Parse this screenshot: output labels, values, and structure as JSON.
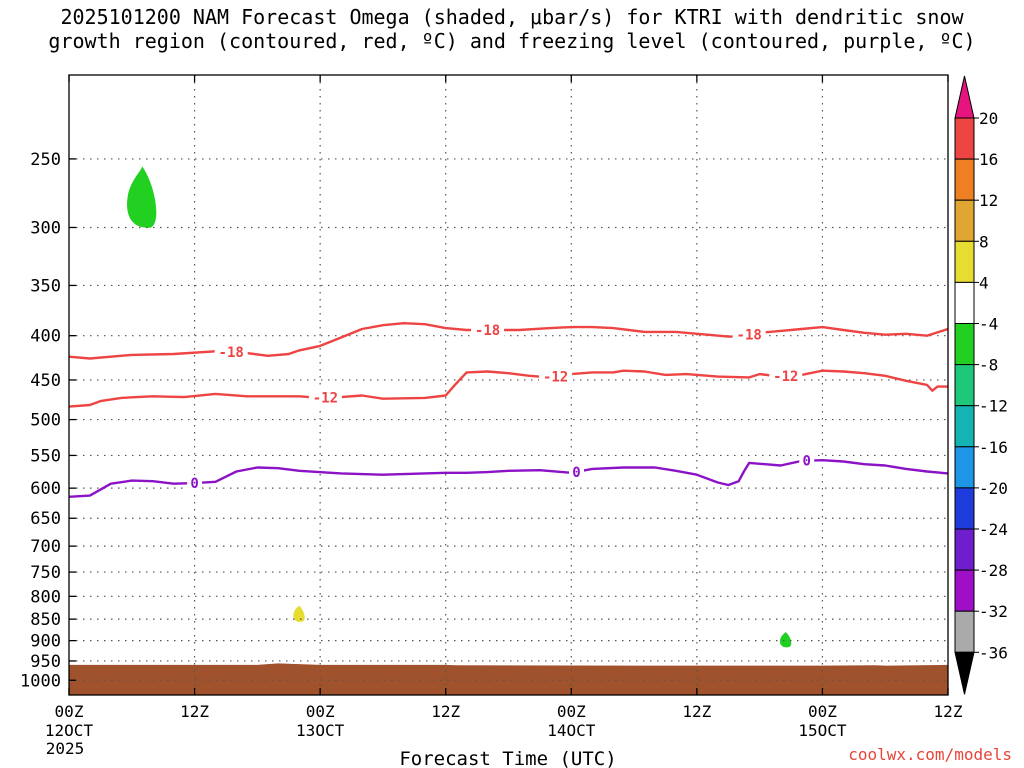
{
  "chart_data": {
    "type": "heatmap",
    "title_line1": "2025101200 NAM Forecast Omega (shaded, μbar/s) for KTRI with dendritic snow",
    "title_line2": "growth region (contoured, red, ºC) and freezing level (contoured, purple, ºC)",
    "xlabel": "Forecast Time (UTC)",
    "ylabel": "",
    "x_range_hours": [
      0,
      84
    ],
    "x_ticks": [
      {
        "hour": 0,
        "line1": "00Z",
        "line2": "12OCT",
        "line3": "2025"
      },
      {
        "hour": 12,
        "line1": "12Z",
        "line2": "",
        "line3": ""
      },
      {
        "hour": 24,
        "line1": "00Z",
        "line2": "13OCT",
        "line3": ""
      },
      {
        "hour": 36,
        "line1": "12Z",
        "line2": "",
        "line3": ""
      },
      {
        "hour": 48,
        "line1": "00Z",
        "line2": "14OCT",
        "line3": ""
      },
      {
        "hour": 60,
        "line1": "12Z",
        "line2": "",
        "line3": ""
      },
      {
        "hour": 72,
        "line1": "00Z",
        "line2": "15OCT",
        "line3": ""
      },
      {
        "hour": 84,
        "line1": "12Z",
        "line2": "",
        "line3": ""
      }
    ],
    "y_axis": "pressure (hPa), log scale, inverted",
    "y_range": [
      1040,
      200
    ],
    "y_ticks": [
      250,
      300,
      350,
      400,
      450,
      500,
      550,
      600,
      650,
      700,
      750,
      800,
      850,
      900,
      950,
      1000
    ],
    "grid": true,
    "series": [
      {
        "name": "-18",
        "color": "#ee4444",
        "label_positions_hours": [
          15.5,
          40,
          65
        ],
        "points": [
          [
            0,
            423
          ],
          [
            2,
            425
          ],
          [
            6,
            421
          ],
          [
            10,
            420
          ],
          [
            14,
            417
          ],
          [
            17,
            419
          ],
          [
            19,
            422
          ],
          [
            21,
            420
          ],
          [
            22,
            416
          ],
          [
            24,
            411
          ],
          [
            26,
            402
          ],
          [
            28,
            393
          ],
          [
            30,
            389
          ],
          [
            32,
            387
          ],
          [
            34,
            388
          ],
          [
            36,
            392
          ],
          [
            38,
            394
          ],
          [
            40,
            394
          ],
          [
            43,
            394
          ],
          [
            46,
            392
          ],
          [
            48,
            391
          ],
          [
            50,
            391
          ],
          [
            52,
            392
          ],
          [
            55,
            396
          ],
          [
            58,
            396
          ],
          [
            61,
            399
          ],
          [
            63,
            401
          ],
          [
            64,
            401
          ],
          [
            66,
            397
          ],
          [
            68,
            395
          ],
          [
            70,
            393
          ],
          [
            72,
            391
          ],
          [
            74,
            394
          ],
          [
            76,
            397
          ],
          [
            78,
            399
          ],
          [
            80,
            398
          ],
          [
            82,
            400
          ],
          [
            84,
            393
          ]
        ]
      },
      {
        "name": "-12",
        "color": "#ee4444",
        "label_positions_hours": [
          24.5,
          46.5,
          68.5
        ],
        "points": [
          [
            0,
            483
          ],
          [
            2,
            481
          ],
          [
            3,
            476
          ],
          [
            5,
            472
          ],
          [
            8,
            470
          ],
          [
            11,
            471
          ],
          [
            14,
            467
          ],
          [
            17,
            470
          ],
          [
            20,
            470
          ],
          [
            22,
            470
          ],
          [
            24,
            472
          ],
          [
            26,
            471
          ],
          [
            28,
            469
          ],
          [
            30,
            473
          ],
          [
            34,
            472
          ],
          [
            36,
            469
          ],
          [
            36.8,
            457
          ],
          [
            38,
            441
          ],
          [
            40,
            440
          ],
          [
            42,
            442
          ],
          [
            44,
            445
          ],
          [
            46,
            447
          ],
          [
            48,
            443
          ],
          [
            50,
            441
          ],
          [
            52,
            441
          ],
          [
            53,
            439
          ],
          [
            55,
            440
          ],
          [
            57,
            444
          ],
          [
            59,
            443
          ],
          [
            62,
            446
          ],
          [
            65,
            447
          ],
          [
            66,
            443
          ],
          [
            68,
            446
          ],
          [
            70,
            444
          ],
          [
            72,
            439
          ],
          [
            74,
            440
          ],
          [
            76,
            442
          ],
          [
            78,
            445
          ],
          [
            80,
            451
          ],
          [
            82,
            456
          ],
          [
            82.5,
            463
          ],
          [
            83,
            458
          ],
          [
            84,
            458
          ]
        ]
      },
      {
        "name": "0",
        "color": "#8c12c6",
        "label_positions_hours": [
          12,
          48.5,
          70.5
        ],
        "points": [
          [
            0,
            614
          ],
          [
            2,
            612
          ],
          [
            4,
            593
          ],
          [
            6,
            588
          ],
          [
            8,
            589
          ],
          [
            10,
            593
          ],
          [
            12,
            592
          ],
          [
            14,
            590
          ],
          [
            16,
            574
          ],
          [
            18,
            568
          ],
          [
            20,
            569
          ],
          [
            22,
            573
          ],
          [
            26,
            577
          ],
          [
            30,
            579
          ],
          [
            32,
            578
          ],
          [
            36,
            576
          ],
          [
            38,
            576
          ],
          [
            40,
            575
          ],
          [
            42,
            573
          ],
          [
            45,
            572
          ],
          [
            48,
            576
          ],
          [
            50,
            570
          ],
          [
            53,
            568
          ],
          [
            56,
            568
          ],
          [
            58,
            573
          ],
          [
            60,
            579
          ],
          [
            62,
            591
          ],
          [
            63,
            595
          ],
          [
            64,
            589
          ],
          [
            64.5,
            574
          ],
          [
            65,
            561
          ],
          [
            68,
            565
          ],
          [
            70,
            558
          ],
          [
            72,
            557
          ],
          [
            74,
            559
          ],
          [
            76,
            563
          ],
          [
            78,
            565
          ],
          [
            80,
            570
          ],
          [
            82,
            574
          ],
          [
            84,
            577
          ]
        ]
      }
    ],
    "shaded_blobs": [
      {
        "name": "omega-blob-green-upper",
        "omega_range": [
          -8,
          -4
        ],
        "color": "#22d022",
        "center_hour": 7,
        "pressure_range": [
          255,
          300
        ]
      },
      {
        "name": "omega-blob-yellow",
        "omega_range": [
          4,
          8
        ],
        "color": "#e6dc32",
        "center_hour": 22,
        "pressure_range": [
          820,
          855
        ]
      },
      {
        "name": "omega-blob-green-lower",
        "omega_range": [
          -8,
          -4
        ],
        "color": "#22d022",
        "center_hour": 68.5,
        "pressure_range": [
          880,
          915
        ]
      }
    ],
    "terrain": {
      "color": "#a0522d",
      "points": [
        [
          0,
          960
        ],
        [
          18,
          960
        ],
        [
          20,
          956
        ],
        [
          22,
          958
        ],
        [
          24,
          960
        ],
        [
          36,
          960
        ],
        [
          37,
          961
        ],
        [
          60,
          962
        ],
        [
          72,
          962
        ],
        [
          77,
          961
        ],
        [
          78,
          962
        ],
        [
          84,
          960
        ]
      ]
    },
    "colorbar": {
      "labels": [
        "20",
        "16",
        "12",
        "8",
        "4",
        "-4",
        "-8",
        "-12",
        "-16",
        "-20",
        "-24",
        "-28",
        "-32",
        "-36"
      ],
      "colors": [
        "#ee4444",
        "#ee7f22",
        "#e0a632",
        "#e6dc32",
        "#ffffff",
        "#22d022",
        "#1ec87a",
        "#15b4b4",
        "#1e96e6",
        "#1e3cdc",
        "#6e1ecd",
        "#a00fc8",
        "#aaaaaa"
      ],
      "top_arrow_color": "#e6147e",
      "bottom_arrow_color": "#000000"
    }
  },
  "watermark": "coolwx.com/models"
}
